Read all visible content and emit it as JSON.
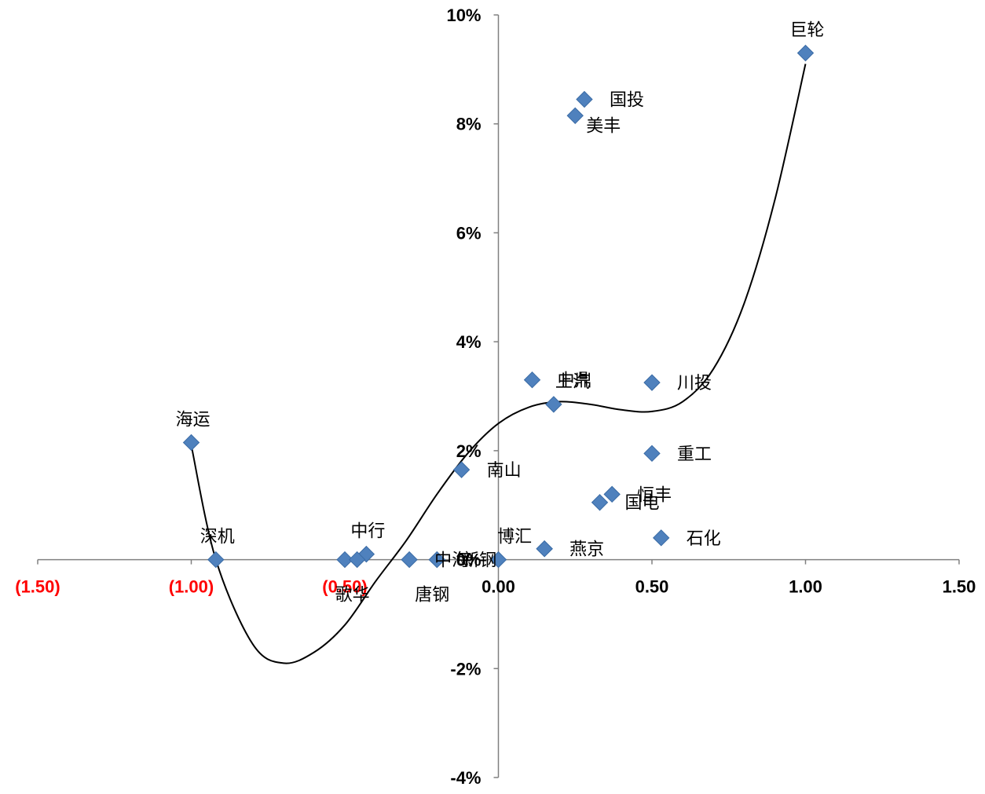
{
  "chart_data": {
    "type": "scatter",
    "title": "",
    "xlabel": "",
    "ylabel": "",
    "xlim": [
      -1.5,
      1.5
    ],
    "ylim": [
      -4,
      10
    ],
    "x_ticks": [
      {
        "value": -1.5,
        "label": "(1.50)",
        "negative": true
      },
      {
        "value": -1.0,
        "label": "(1.00)",
        "negative": true
      },
      {
        "value": -0.5,
        "label": "(0.50)",
        "negative": true
      },
      {
        "value": 0.0,
        "label": "0.00",
        "negative": false
      },
      {
        "value": 0.5,
        "label": "0.50",
        "negative": false
      },
      {
        "value": 1.0,
        "label": "1.00",
        "negative": false
      },
      {
        "value": 1.5,
        "label": "1.50",
        "negative": false
      }
    ],
    "y_ticks": [
      {
        "value": 10,
        "label": "10%"
      },
      {
        "value": 8,
        "label": "8%"
      },
      {
        "value": 6,
        "label": "6%"
      },
      {
        "value": 4,
        "label": "4%"
      },
      {
        "value": 2,
        "label": "2%"
      },
      {
        "value": 0,
        "label": "0%"
      },
      {
        "value": -2,
        "label": "-2%"
      },
      {
        "value": -4,
        "label": "-4%"
      }
    ],
    "points": [
      {
        "label": "巨轮",
        "x": 1.0,
        "y": 9.3,
        "pos": "top"
      },
      {
        "label": "国投",
        "x": 0.28,
        "y": 8.45,
        "pos": "right"
      },
      {
        "label": "美丰",
        "x": 0.25,
        "y": 8.15,
        "pos": "below-right"
      },
      {
        "label": "中鼎",
        "x": 0.11,
        "y": 3.3,
        "pos": "right"
      },
      {
        "label": "上汽",
        "x": 0.18,
        "y": 2.85,
        "pos": "above-right"
      },
      {
        "label": "川投",
        "x": 0.5,
        "y": 3.25,
        "pos": "right"
      },
      {
        "label": "海运",
        "x": -1.0,
        "y": 2.15,
        "pos": "top"
      },
      {
        "label": "重工",
        "x": 0.5,
        "y": 1.95,
        "pos": "right"
      },
      {
        "label": "南山",
        "x": -0.12,
        "y": 1.65,
        "pos": "right"
      },
      {
        "label": "恒丰",
        "x": 0.37,
        "y": 1.2,
        "pos": "right"
      },
      {
        "label": "国电",
        "x": 0.33,
        "y": 1.05,
        "pos": "right"
      },
      {
        "label": "石化",
        "x": 0.53,
        "y": 0.4,
        "pos": "right"
      },
      {
        "label": "博汇",
        "x": 0.15,
        "y": 0.2,
        "pos": "upper-left"
      },
      {
        "label": "燕京",
        "x": 0.15,
        "y": 0.2,
        "pos": "right"
      },
      {
        "label": "深机",
        "x": -0.92,
        "y": 0.0,
        "pos": "top"
      },
      {
        "label": "中行",
        "x": -0.43,
        "y": 0.1,
        "pos": "top"
      },
      {
        "label": "",
        "x": -0.5,
        "y": 0.0,
        "pos": "none"
      },
      {
        "label": "歌华",
        "x": -0.46,
        "y": 0.0,
        "pos": "below"
      },
      {
        "label": "中海",
        "x": -0.29,
        "y": 0.0,
        "pos": "right"
      },
      {
        "label": "新钢",
        "x": -0.2,
        "y": 0.0,
        "pos": "right"
      },
      {
        "label": "唐钢",
        "x": -0.2,
        "y": 0.0,
        "pos": "below"
      },
      {
        "label": "",
        "x": 0.0,
        "y": 0.0,
        "pos": "none"
      }
    ],
    "trendline": {
      "type": "polynomial",
      "x": [
        -1.0,
        -0.92,
        -0.8,
        -0.7,
        -0.6,
        -0.5,
        -0.4,
        -0.3,
        -0.2,
        -0.1,
        0.0,
        0.1,
        0.2,
        0.3,
        0.4,
        0.5,
        0.6,
        0.7,
        0.8,
        0.9,
        1.0
      ],
      "y": [
        2.1,
        0.0,
        -1.55,
        -1.9,
        -1.7,
        -1.2,
        -0.4,
        0.35,
        1.2,
        1.95,
        2.5,
        2.8,
        2.9,
        2.85,
        2.75,
        2.72,
        2.9,
        3.5,
        4.7,
        6.6,
        9.1
      ]
    },
    "colors": {
      "marker": "#4F81BD",
      "marker_stroke": "#3A6BA5",
      "negative_tick": "#FF0000",
      "tick": "#000000",
      "axis": "#808080",
      "trendline": "#000000"
    },
    "grid": false,
    "legend": "none"
  }
}
